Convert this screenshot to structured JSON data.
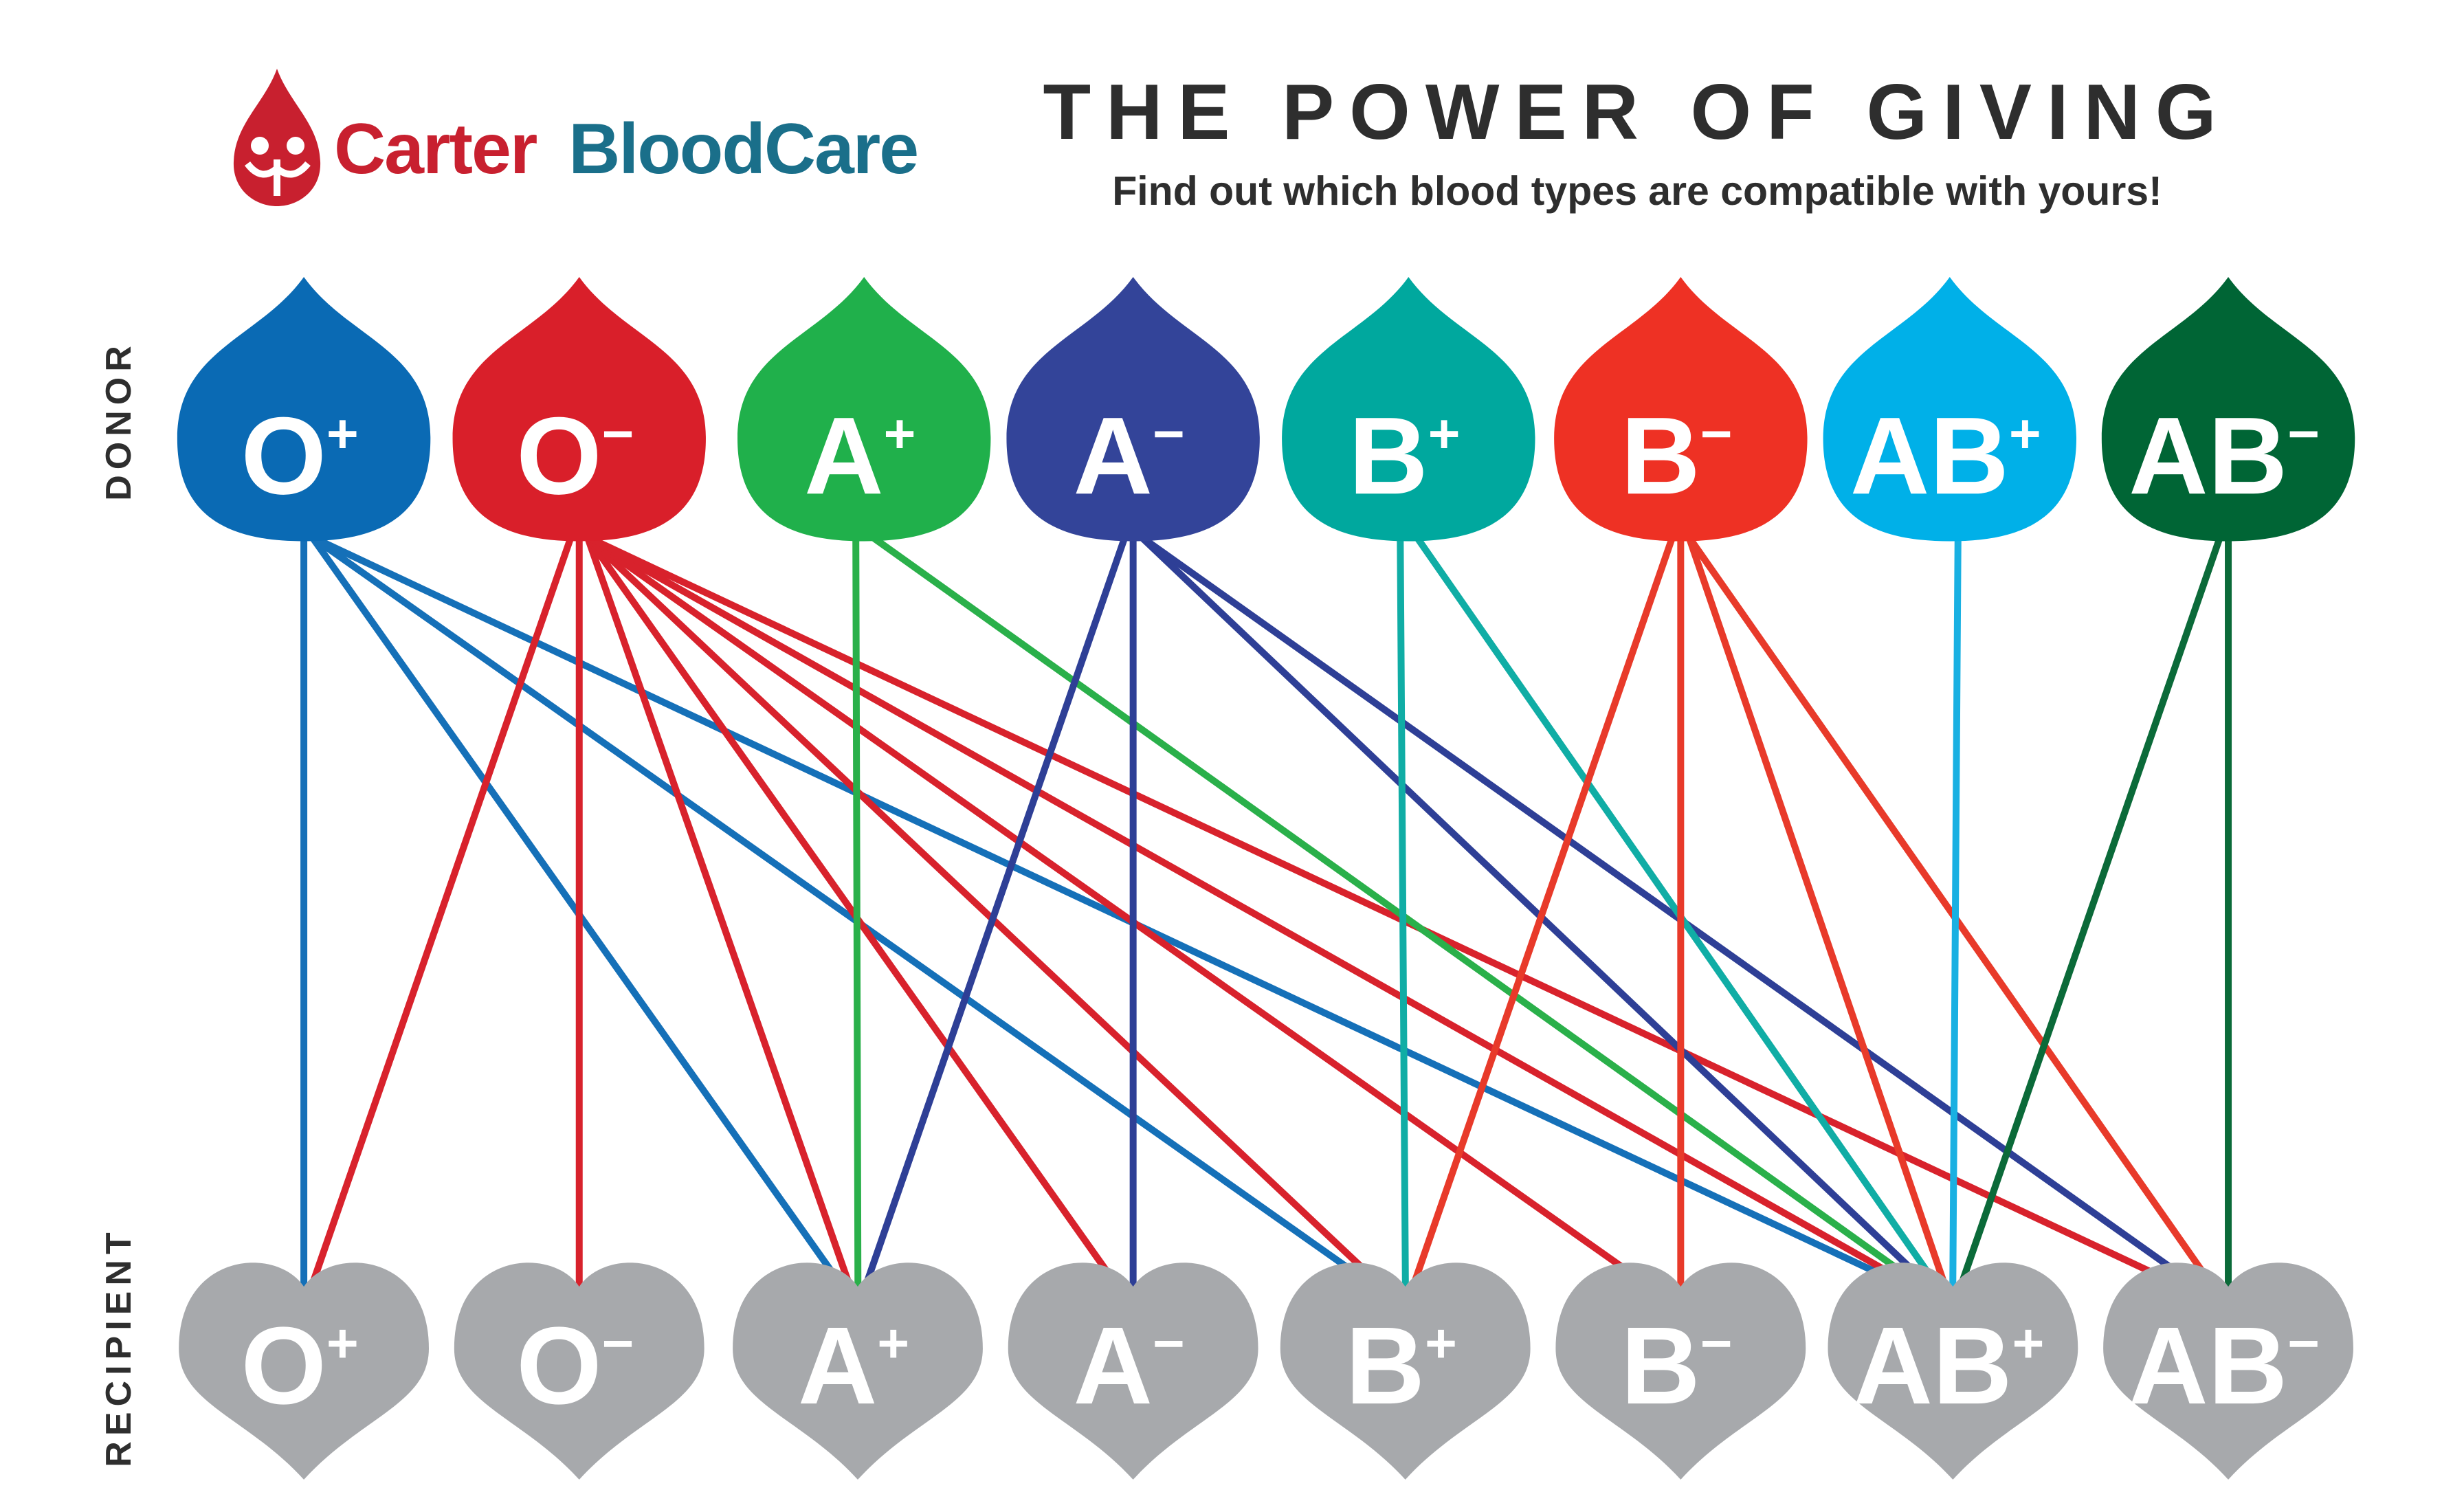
{
  "header": {
    "brand_part1": "Carter",
    "brand_part2": "BloodCare",
    "brand_color1": "#c8202f",
    "brand_color2": "#1a6f8a",
    "title": "THE POWER OF GIVING",
    "subtitle": "Find out which blood types are compatible with yours!"
  },
  "labels": {
    "donor": "DONOR",
    "recipient": "RECIPIENT"
  },
  "donors": [
    {
      "base": "O",
      "sign": "+",
      "color": "#0a6ab4",
      "line_color": "#1570b8"
    },
    {
      "base": "O",
      "sign": "-",
      "color": "#d91f2a",
      "line_color": "#d8222c"
    },
    {
      "base": "A",
      "sign": "+",
      "color": "#20b04b",
      "line_color": "#2ab04a"
    },
    {
      "base": "A",
      "sign": "-",
      "color": "#334499",
      "line_color": "#2e3f96"
    },
    {
      "base": "B",
      "sign": "+",
      "color": "#00a89e",
      "line_color": "#10ada5"
    },
    {
      "base": "B",
      "sign": "-",
      "color": "#ee3124",
      "line_color": "#e83a2a"
    },
    {
      "base": "AB",
      "sign": "+",
      "color": "#00b0e8",
      "line_color": "#19b0e2"
    },
    {
      "base": "AB",
      "sign": "-",
      "color": "#006535",
      "line_color": "#0b6a39"
    }
  ],
  "recipients": [
    {
      "base": "O",
      "sign": "+"
    },
    {
      "base": "O",
      "sign": "-"
    },
    {
      "base": "A",
      "sign": "+"
    },
    {
      "base": "A",
      "sign": "-"
    },
    {
      "base": "B",
      "sign": "+"
    },
    {
      "base": "B",
      "sign": "-"
    },
    {
      "base": "AB",
      "sign": "+"
    },
    {
      "base": "AB",
      "sign": "-"
    }
  ],
  "recipient_color": "#a7a9ac",
  "compatibility": [
    {
      "donor": 0,
      "recipients": [
        0,
        2,
        4,
        6
      ]
    },
    {
      "donor": 1,
      "recipients": [
        0,
        1,
        2,
        3,
        4,
        5,
        6,
        7
      ]
    },
    {
      "donor": 2,
      "recipients": [
        2,
        6
      ]
    },
    {
      "donor": 3,
      "recipients": [
        2,
        3,
        6,
        7
      ]
    },
    {
      "donor": 4,
      "recipients": [
        4,
        6
      ]
    },
    {
      "donor": 5,
      "recipients": [
        4,
        5,
        6,
        7
      ]
    },
    {
      "donor": 6,
      "recipients": [
        6
      ]
    },
    {
      "donor": 7,
      "recipients": [
        6,
        7
      ]
    }
  ]
}
